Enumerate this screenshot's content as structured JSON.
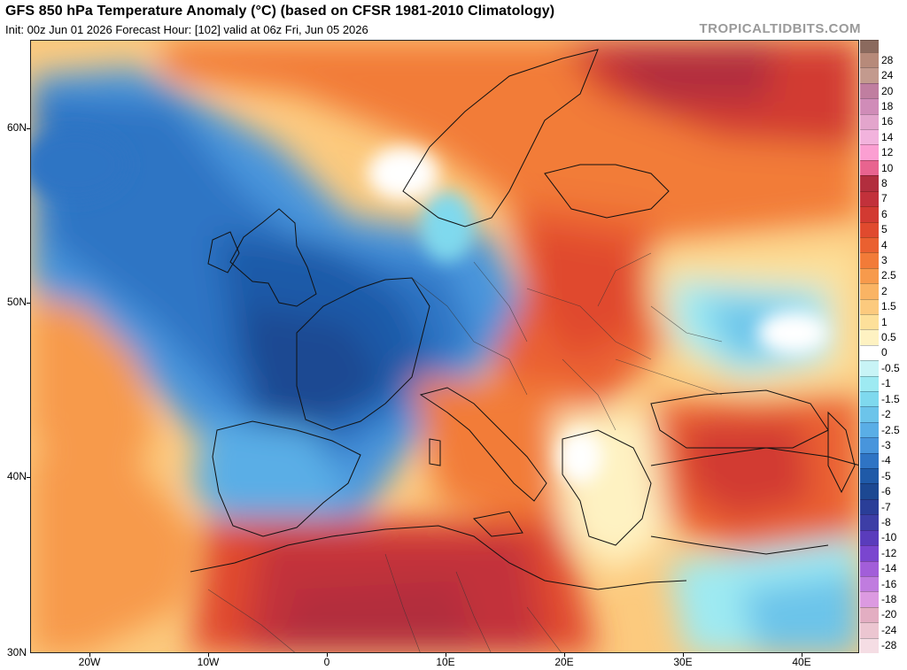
{
  "header": {
    "title": "GFS 850 hPa Temperature Anomaly (°C) (based on CFSR 1981-2010 Climatology)",
    "subtitle": "Init: 00z Jun 01 2026   Forecast Hour: [102]   valid at 06z Fri, Jun 05 2026",
    "brand": "TROPICALTIDBITS.COM"
  },
  "axes": {
    "latitudes": [
      "60N",
      "50N",
      "40N",
      "30N"
    ],
    "longitudes": [
      "20W",
      "10W",
      "0",
      "10E",
      "20E",
      "30E",
      "40E"
    ]
  },
  "legend": {
    "entries": [
      {
        "label": "28",
        "color": "#b78a7a"
      },
      {
        "label": "24",
        "color": "#c39a8e"
      },
      {
        "label": "20",
        "color": "#c07ea0"
      },
      {
        "label": "18",
        "color": "#d08cb8"
      },
      {
        "label": "16",
        "color": "#e3a5cc"
      },
      {
        "label": "14",
        "color": "#f2b3dd"
      },
      {
        "label": "12",
        "color": "#fb9fd2"
      },
      {
        "label": "10",
        "color": "#e8648f"
      },
      {
        "label": "8",
        "color": "#b22e3e"
      },
      {
        "label": "7",
        "color": "#c2313b"
      },
      {
        "label": "6",
        "color": "#d23a32"
      },
      {
        "label": "5",
        "color": "#e04a2e"
      },
      {
        "label": "4",
        "color": "#ea6030"
      },
      {
        "label": "3",
        "color": "#f27b38"
      },
      {
        "label": "2.5",
        "color": "#f79a4c"
      },
      {
        "label": "2",
        "color": "#fab464"
      },
      {
        "label": "1.5",
        "color": "#fcca7e"
      },
      {
        "label": "1",
        "color": "#fde09a"
      },
      {
        "label": "0.5",
        "color": "#fef2c2"
      },
      {
        "label": "0",
        "color": "#ffffff"
      },
      {
        "label": "-0.5",
        "color": "#c8f4f6"
      },
      {
        "label": "-1",
        "color": "#9eeaf2"
      },
      {
        "label": "-1.5",
        "color": "#7fd9ee"
      },
      {
        "label": "-2",
        "color": "#6cc4ea"
      },
      {
        "label": "-2.5",
        "color": "#5aaee6"
      },
      {
        "label": "-3",
        "color": "#4895dc"
      },
      {
        "label": "-4",
        "color": "#2f74c4"
      },
      {
        "label": "-5",
        "color": "#1f5aa8"
      },
      {
        "label": "-6",
        "color": "#1c4892"
      },
      {
        "label": "-7",
        "color": "#2a3e98"
      },
      {
        "label": "-8",
        "color": "#3d3ea6"
      },
      {
        "label": "-10",
        "color": "#5a3cbc"
      },
      {
        "label": "-12",
        "color": "#7a46cf"
      },
      {
        "label": "-14",
        "color": "#a25ed9"
      },
      {
        "label": "-16",
        "color": "#c07cdf"
      },
      {
        "label": "-18",
        "color": "#dc9ae1"
      },
      {
        "label": "-20",
        "color": "#e3aec2"
      },
      {
        "label": "-24",
        "color": "#ecc6d1"
      },
      {
        "label": "-28",
        "color": "#f5dde4"
      }
    ],
    "top_color": "#8b6a5e"
  }
}
